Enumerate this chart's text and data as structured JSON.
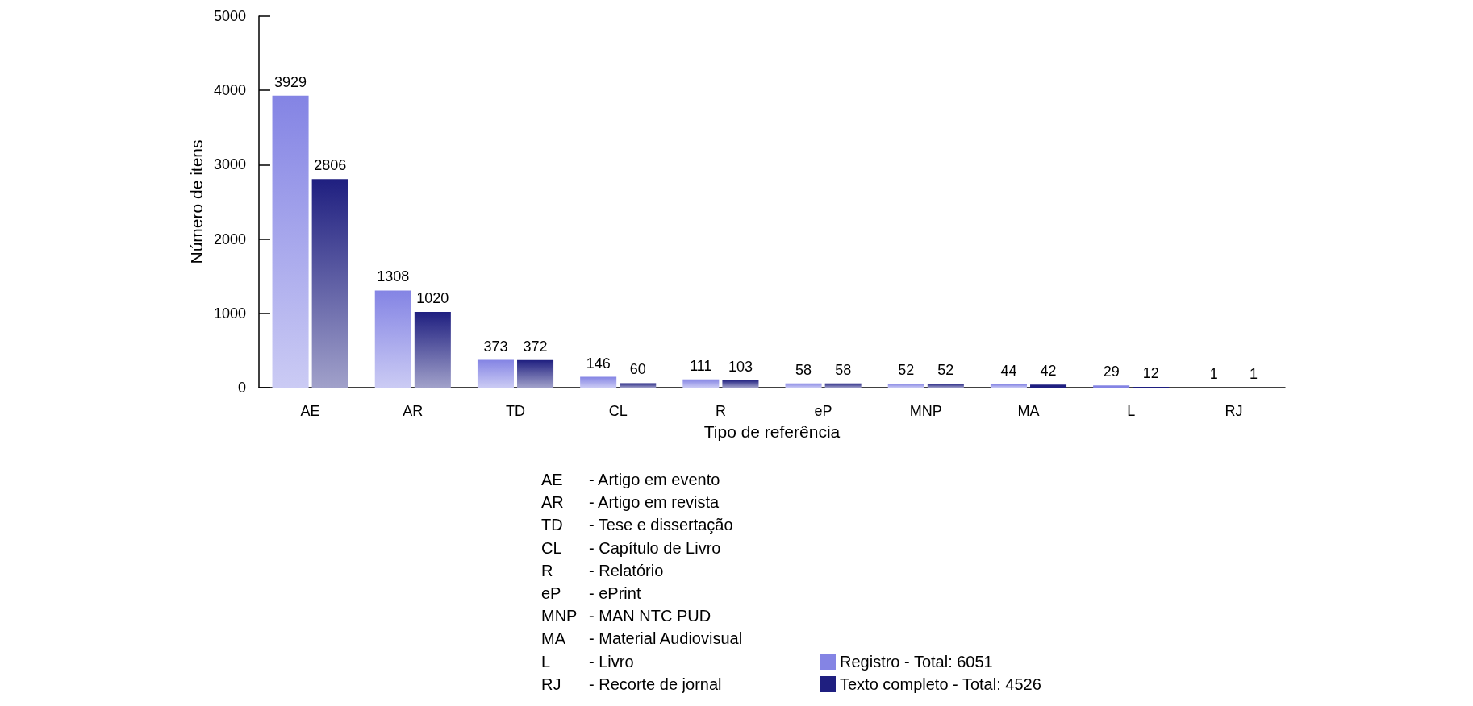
{
  "chart_data": {
    "type": "bar",
    "xlabel": "Tipo de referência",
    "ylabel": "Número de itens",
    "categories": [
      "AE",
      "AR",
      "TD",
      "CL",
      "R",
      "eP",
      "MNP",
      "MA",
      "L",
      "RJ"
    ],
    "series": [
      {
        "name": "Registro - Total: 6051",
        "color": "#8484e4",
        "values": [
          3929,
          1308,
          373,
          146,
          111,
          58,
          52,
          44,
          29,
          1
        ]
      },
      {
        "name": "Texto completo - Total: 4526",
        "color": "#1f1f80",
        "values": [
          2806,
          1020,
          372,
          60,
          103,
          58,
          52,
          42,
          12,
          1
        ]
      }
    ],
    "ylim": [
      0,
      5000
    ],
    "yticks": [
      0,
      1000,
      2000,
      3000,
      4000,
      5000
    ],
    "data_labels": true,
    "legend": "bottom",
    "annotations": [
      "AE - Artigo em evento",
      "AR - Artigo em revista",
      "TD - Tese e dissertação",
      "CL - Capítulo de Livro",
      "R - Relatório",
      "eP - ePrint",
      "MNP - MAN NTC PUD",
      "MA - Material Audiovisual",
      "L - Livro",
      "RJ - Recorte de jornal"
    ]
  }
}
